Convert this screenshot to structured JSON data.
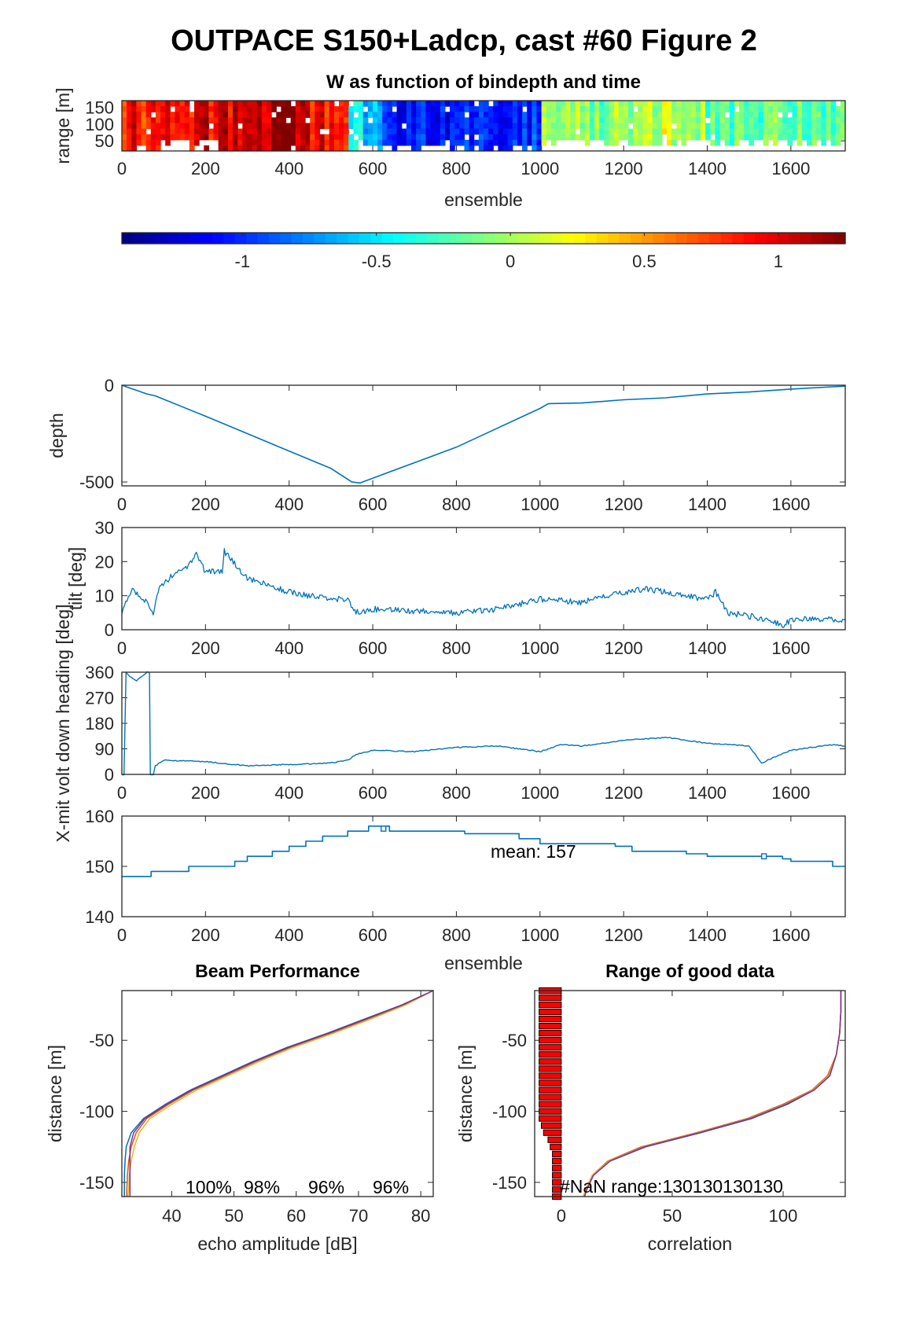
{
  "figure_title": "OUTPACE S150+Ladcp, cast #60 Figure 2",
  "colors": {
    "line": "#0072BD",
    "axis": "#262626",
    "bar_fill": "#FF0000",
    "beam_colors": [
      "#0072BD",
      "#D95319",
      "#EDB120",
      "#7E2F8E"
    ]
  },
  "chart_data": [
    {
      "id": "w_image",
      "type": "heatmap",
      "title": "W as function of bindepth and time",
      "xlabel": "ensemble",
      "ylabel": "range [m]",
      "xlim": [
        0,
        1730
      ],
      "ylim": [
        20,
        170
      ],
      "xticks": [
        "0",
        "200",
        "400",
        "600",
        "800",
        "1000",
        "1200",
        "1600"
      ],
      "xtick_values": [
        0,
        200,
        400,
        600,
        800,
        1000,
        1200,
        1600
      ],
      "extra_xticks": [
        {
          "value": 1400,
          "label": "1400"
        }
      ],
      "yticks": [
        "50",
        "100",
        "150"
      ],
      "ytick_values": [
        50,
        100,
        150
      ],
      "segments": [
        {
          "x": [
            0,
            50
          ],
          "w": 0.9
        },
        {
          "x": [
            50,
            170
          ],
          "w": 0.8
        },
        {
          "x": [
            170,
            260
          ],
          "w": 1.0
        },
        {
          "x": [
            260,
            450
          ],
          "w": 1.15
        },
        {
          "x": [
            450,
            545
          ],
          "w": 0.95
        },
        {
          "x": [
            545,
            620
          ],
          "w": -0.5
        },
        {
          "x": [
            620,
            760
          ],
          "w": -1.1
        },
        {
          "x": [
            760,
            900
          ],
          "w": -1.05
        },
        {
          "x": [
            900,
            1000
          ],
          "w": -1.0
        },
        {
          "x": [
            1000,
            1200
          ],
          "w": -0.1
        },
        {
          "x": [
            1200,
            1400
          ],
          "w": 0.05
        },
        {
          "x": [
            1400,
            1730
          ],
          "w": -0.2
        }
      ]
    },
    {
      "id": "colorbar",
      "type": "heatmap",
      "range": [
        -1.45,
        1.25
      ],
      "ticks": [
        "-1",
        "-0.5",
        "0",
        "0.5",
        "1"
      ],
      "tick_values": [
        -1,
        -0.5,
        0,
        0.5,
        1
      ]
    },
    {
      "id": "depth",
      "type": "line",
      "ylabel": "depth",
      "xlim": [
        0,
        1730
      ],
      "ylim": [
        -520,
        0
      ],
      "xticks": [
        "0",
        "200",
        "400",
        "600",
        "800",
        "1000",
        "1200",
        "1400",
        "1600"
      ],
      "xtick_values": [
        0,
        200,
        400,
        600,
        800,
        1000,
        1200,
        1400,
        1600
      ],
      "yticks": [
        "0",
        "-500"
      ],
      "ytick_values": [
        0,
        -500
      ],
      "x": [
        0,
        60,
        80,
        200,
        300,
        400,
        500,
        550,
        570,
        600,
        700,
        800,
        900,
        1000,
        1020,
        1100,
        1200,
        1300,
        1400,
        1500,
        1600,
        1700,
        1730
      ],
      "y": [
        0,
        -45,
        -55,
        -160,
        -250,
        -340,
        -430,
        -500,
        -505,
        -480,
        -400,
        -320,
        -220,
        -120,
        -95,
        -92,
        -75,
        -65,
        -45,
        -35,
        -20,
        -8,
        -5
      ]
    },
    {
      "id": "tilt",
      "type": "line",
      "ylabel": "tilt [deg]",
      "xlim": [
        0,
        1730
      ],
      "ylim": [
        0,
        30
      ],
      "xticks": [
        "0",
        "200",
        "400",
        "600",
        "800",
        "1000",
        "1200",
        "1400",
        "1600"
      ],
      "xtick_values": [
        0,
        200,
        400,
        600,
        800,
        1000,
        1200,
        1400,
        1600
      ],
      "yticks": [
        "0",
        "10",
        "20",
        "30"
      ],
      "ytick_values": [
        0,
        10,
        20,
        30
      ],
      "x": [
        0,
        25,
        45,
        60,
        75,
        90,
        120,
        150,
        170,
        175,
        200,
        240,
        245,
        300,
        350,
        400,
        450,
        500,
        540,
        560,
        600,
        700,
        800,
        900,
        1000,
        1100,
        1200,
        1250,
        1300,
        1350,
        1400,
        1420,
        1450,
        1500,
        1550,
        1580,
        1600,
        1700,
        1730
      ],
      "y": [
        5,
        12,
        10,
        8,
        5,
        12,
        16,
        18,
        20,
        23,
        17,
        17,
        23,
        15,
        13,
        11,
        10,
        9,
        9,
        5,
        6,
        5.5,
        5,
        6,
        9,
        8,
        11,
        12,
        11,
        10,
        9,
        11,
        5,
        4,
        3,
        1,
        3,
        3,
        3
      ]
    },
    {
      "id": "heading",
      "type": "line",
      "ylabel": "X-mit volt down heading [deg]",
      "xlim": [
        0,
        1730
      ],
      "ylim": [
        0,
        360
      ],
      "xticks": [
        "0",
        "200",
        "400",
        "600",
        "800",
        "1000",
        "1200",
        "1400",
        "1600"
      ],
      "xtick_values": [
        0,
        200,
        400,
        600,
        800,
        1000,
        1200,
        1400,
        1600
      ],
      "yticks": [
        "0",
        "90",
        "180",
        "270",
        "360"
      ],
      "ytick_values": [
        0,
        90,
        180,
        270,
        360
      ],
      "x": [
        0,
        5,
        10,
        15,
        35,
        60,
        66,
        68,
        75,
        80,
        100,
        200,
        300,
        400,
        500,
        540,
        560,
        600,
        700,
        800,
        900,
        1000,
        1050,
        1100,
        1200,
        1300,
        1400,
        1500,
        1510,
        1520,
        1530,
        1560,
        1600,
        1700,
        1730
      ],
      "y": [
        0,
        0,
        360,
        350,
        330,
        360,
        360,
        0,
        0,
        30,
        50,
        45,
        30,
        35,
        40,
        50,
        70,
        85,
        80,
        95,
        100,
        80,
        105,
        100,
        120,
        130,
        110,
        100,
        80,
        60,
        40,
        60,
        85,
        105,
        100
      ]
    },
    {
      "id": "xmit",
      "type": "line",
      "ylabel": "X-mit volt down heading [deg]",
      "xlabel": "ensemble",
      "annotation": "mean: 157",
      "xlim": [
        0,
        1730
      ],
      "ylim": [
        140,
        160
      ],
      "xticks": [
        "0",
        "200",
        "400",
        "600",
        "800",
        "1000",
        "1200",
        "1400",
        "1600"
      ],
      "xtick_values": [
        0,
        200,
        400,
        600,
        800,
        1000,
        1200,
        1400,
        1600
      ],
      "yticks": [
        "140",
        "150",
        "160"
      ],
      "ytick_values": [
        140,
        150,
        160
      ],
      "steps": [
        [
          0,
          148
        ],
        [
          70,
          149
        ],
        [
          160,
          150
        ],
        [
          270,
          151
        ],
        [
          300,
          152
        ],
        [
          360,
          153
        ],
        [
          400,
          154
        ],
        [
          440,
          155
        ],
        [
          480,
          156
        ],
        [
          540,
          157
        ],
        [
          590,
          158
        ],
        [
          640,
          157
        ],
        [
          660,
          157
        ],
        [
          800,
          157
        ],
        [
          820,
          156.5
        ],
        [
          950,
          155.5
        ],
        [
          1000,
          154.5
        ],
        [
          1180,
          154
        ],
        [
          1220,
          153
        ],
        [
          1350,
          152.5
        ],
        [
          1400,
          152
        ],
        [
          1580,
          151.5
        ],
        [
          1600,
          151
        ],
        [
          1700,
          150
        ],
        [
          1730,
          150
        ]
      ],
      "blips": [
        [
          620,
          157
        ],
        [
          1530,
          151.5
        ]
      ]
    },
    {
      "id": "beam",
      "type": "line",
      "title": "Beam Performance",
      "xlabel": "echo amplitude [dB]",
      "ylabel": "distance [m]",
      "xlim": [
        32,
        82
      ],
      "ylim": [
        -160,
        -15
      ],
      "xticks": [
        "40",
        "50",
        "60",
        "70",
        "80"
      ],
      "xtick_values": [
        40,
        50,
        60,
        70,
        80
      ],
      "yticks": [
        "-50",
        "-100",
        "-150"
      ],
      "ytick_values": [
        -50,
        -100,
        -150
      ],
      "percent_labels": [
        "100%",
        "98%",
        "96%",
        "96%"
      ],
      "y": [
        -15,
        -25,
        -35,
        -45,
        -55,
        -65,
        -75,
        -85,
        -95,
        -105,
        -115,
        -125,
        -135,
        -145,
        -155,
        -160
      ],
      "series": [
        {
          "values": [
            82,
            77,
            71,
            65,
            58.5,
            53,
            48,
            43,
            39,
            35.5,
            33.5,
            32.7,
            32.5,
            32.4,
            32.4,
            32.4
          ]
        },
        {
          "values": [
            82,
            77.3,
            71.5,
            65.5,
            59,
            53.5,
            48.5,
            43.5,
            39.5,
            36,
            34.3,
            33.5,
            33.1,
            32.9,
            32.8,
            32.8
          ]
        },
        {
          "values": [
            82,
            77.6,
            72,
            66,
            59.5,
            54,
            49,
            44,
            40,
            36.5,
            34.8,
            34,
            33.5,
            33.2,
            33.1,
            33
          ]
        },
        {
          "values": [
            82,
            77.1,
            71.2,
            65.2,
            58.7,
            53.2,
            48.2,
            43.2,
            39.2,
            35.7,
            33.9,
            33.3,
            33.3,
            33.3,
            33.3,
            33.3
          ]
        }
      ]
    },
    {
      "id": "range",
      "type": "bar",
      "title": "Range of good data",
      "xlabel": "correlation",
      "ylabel": "distance [m]",
      "annotation": "#NaN range:130130130130",
      "xlim": [
        -12,
        128
      ],
      "ylim": [
        -160,
        -15
      ],
      "xticks": [
        "0",
        "50",
        "100"
      ],
      "xtick_values": [
        0,
        50,
        100
      ],
      "yticks": [
        "-50",
        "-100",
        "-150"
      ],
      "ytick_values": [
        -50,
        -100,
        -150
      ],
      "bar_bins": [
        -15,
        -20,
        -25,
        -30,
        -35,
        -40,
        -45,
        -50,
        -55,
        -60,
        -65,
        -70,
        -75,
        -80,
        -85,
        -90,
        -95,
        -100,
        -105,
        -110,
        -115,
        -120,
        -125,
        -130,
        -135,
        -140,
        -145,
        -150,
        -155,
        -160
      ],
      "bar_values": [
        -10,
        -10,
        -10,
        -10,
        -10,
        -10,
        -10,
        -10,
        -10,
        -10,
        -10,
        -10,
        -10,
        -10,
        -10,
        -10,
        -10,
        -10,
        -10,
        -9,
        -8,
        -6,
        -5,
        -4,
        -4,
        -4,
        -4,
        -4,
        -4,
        -4
      ],
      "y": [
        -15,
        -30,
        -45,
        -60,
        -75,
        -85,
        -95,
        -105,
        -115,
        -125,
        -135,
        -145,
        -155,
        -160
      ],
      "series": [
        {
          "values": [
            126,
            126,
            125.5,
            124,
            121,
            114,
            102,
            86,
            63,
            38,
            22,
            14,
            11,
            10
          ]
        },
        {
          "values": [
            126,
            126,
            125.5,
            124,
            120,
            113,
            100,
            84,
            61,
            36,
            21,
            14,
            11,
            10
          ]
        },
        {
          "values": [
            126,
            126,
            125.5,
            124,
            120.5,
            113.5,
            101,
            85,
            62,
            37,
            21.5,
            14,
            11,
            10
          ]
        },
        {
          "values": [
            126,
            126,
            125.5,
            124,
            121,
            114,
            101.5,
            85.5,
            62.5,
            37.5,
            22,
            14.5,
            11.5,
            10.5
          ]
        }
      ]
    }
  ]
}
